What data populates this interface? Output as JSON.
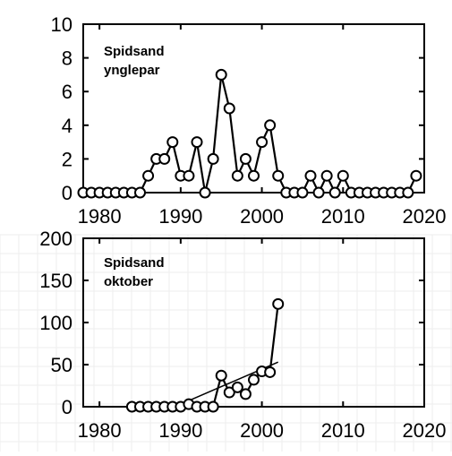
{
  "chart_data": [
    {
      "type": "line",
      "annotation": [
        "Spidsand",
        "ynglepar"
      ],
      "xlim": [
        1978,
        2020
      ],
      "ylim": [
        0,
        10
      ],
      "xticks": [
        1980,
        1990,
        2000,
        2010,
        2020
      ],
      "yticks": [
        0,
        2,
        4,
        6,
        8,
        10
      ],
      "grid": false,
      "series": [
        {
          "x": [
            1978,
            1979,
            1980,
            1981,
            1982,
            1983,
            1984,
            1985,
            1986,
            1987,
            1988,
            1989,
            1990,
            1991,
            1992,
            1993,
            1994,
            1995,
            1996,
            1997,
            1998,
            1999,
            2000,
            2001,
            2002,
            2003,
            2004,
            2005,
            2006,
            2007,
            2008,
            2009,
            2010,
            2011,
            2012,
            2013,
            2014,
            2015,
            2016,
            2017,
            2018,
            2019
          ],
          "y": [
            0,
            0,
            0,
            0,
            0,
            0,
            0,
            0,
            1,
            2,
            2,
            3,
            1,
            1,
            3,
            0,
            2,
            7,
            5,
            1,
            2,
            1,
            3,
            4,
            1,
            0,
            0,
            0,
            1,
            0,
            1,
            0,
            1,
            0,
            0,
            0,
            0,
            0,
            0,
            0,
            0,
            1
          ]
        }
      ]
    },
    {
      "type": "line",
      "annotation": [
        "Spidsand",
        "oktober"
      ],
      "xlim": [
        1978,
        2020
      ],
      "ylim": [
        0,
        200
      ],
      "xticks": [
        1980,
        1990,
        2000,
        2010,
        2020
      ],
      "yticks": [
        0,
        50,
        100,
        150,
        200
      ],
      "grid": true,
      "series": [
        {
          "x": [
            1984,
            1985,
            1986,
            1987,
            1988,
            1989,
            1990,
            1991,
            1992,
            1993,
            1994,
            1995,
            1996,
            1997,
            1998,
            1999,
            2000,
            2001,
            2002
          ],
          "y": [
            0,
            0,
            0,
            0,
            0,
            0,
            0,
            3,
            0,
            0,
            0,
            37,
            17,
            23,
            15,
            32,
            42,
            41,
            122
          ]
        }
      ],
      "trendline": {
        "x": [
          1990,
          2002
        ],
        "y": [
          3,
          53
        ]
      }
    }
  ]
}
